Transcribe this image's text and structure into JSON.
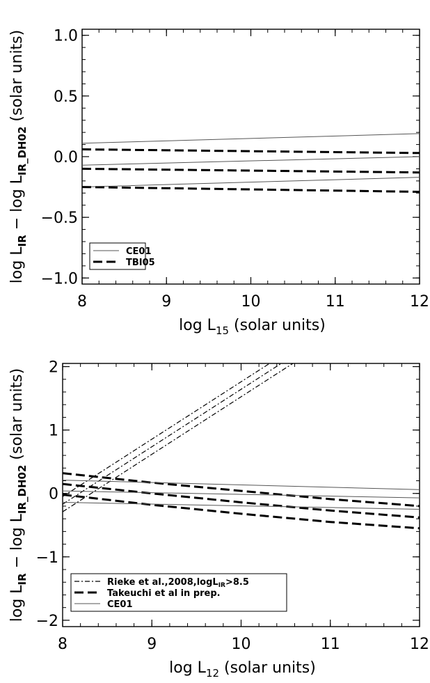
{
  "chart_data": [
    {
      "type": "line",
      "xlabel": {
        "main": "log L",
        "sub": "15",
        "tail": " (solar units)"
      },
      "ylabel": {
        "p1": "log L",
        "s1": "IR",
        "p2": " − log L",
        "s2": "IR_DH02",
        "p3": "  (solar units)"
      },
      "xlim": [
        8,
        12
      ],
      "ylim": [
        -1.05,
        1.05
      ],
      "xticks": [
        8,
        9,
        10,
        11,
        12
      ],
      "xtick_labels": [
        "8",
        "9",
        "10",
        "11",
        "12"
      ],
      "yticks": [
        -1.0,
        -0.5,
        0.0,
        0.5,
        1.0
      ],
      "ytick_labels": [
        "−1.0",
        "−0.5",
        "0.0",
        "0.5",
        "1.0"
      ],
      "legend_position": "bottom-left",
      "legend": [
        {
          "label": "CE01",
          "style": "solid-thin"
        },
        {
          "label": "TBI05",
          "style": "dashed-thick"
        }
      ],
      "series": [
        {
          "name": "CE01",
          "style": "solid-thin",
          "x": [
            8,
            12
          ],
          "y": [
            0.11,
            0.19
          ]
        },
        {
          "name": "CE01",
          "style": "solid-thin",
          "x": [
            8,
            12
          ],
          "y": [
            -0.07,
            0.0
          ]
        },
        {
          "name": "CE01",
          "style": "solid-thin",
          "x": [
            8,
            12
          ],
          "y": [
            -0.25,
            -0.17
          ]
        },
        {
          "name": "TBI05",
          "style": "dashed-thick",
          "x": [
            8,
            12
          ],
          "y": [
            0.06,
            0.03
          ]
        },
        {
          "name": "TBI05",
          "style": "dashed-thick",
          "x": [
            8,
            12
          ],
          "y": [
            -0.1,
            -0.13
          ]
        },
        {
          "name": "TBI05",
          "style": "dashed-thick",
          "x": [
            8,
            12
          ],
          "y": [
            -0.25,
            -0.29
          ]
        }
      ]
    },
    {
      "type": "line",
      "xlabel": {
        "main": "log L",
        "sub": "12",
        "tail": "  (solar units)"
      },
      "ylabel": {
        "p1": "log L",
        "s1": "IR",
        "p2": " − log L",
        "s2": "IR_DH02",
        "p3": "  (solar units)"
      },
      "xlim": [
        8,
        12
      ],
      "ylim": [
        -2.1,
        2.05
      ],
      "xticks": [
        8,
        9,
        10,
        11,
        12
      ],
      "xtick_labels": [
        "8",
        "9",
        "10",
        "11",
        "12"
      ],
      "yticks": [
        -2,
        -1,
        0,
        1,
        2
      ],
      "ytick_labels": [
        "−2",
        "−1",
        "0",
        "1",
        "2"
      ],
      "legend_position": "bottom-left",
      "legend": [
        {
          "label_parts": [
            "Rieke et al.,2008,logL",
            "IR",
            ">8.5"
          ],
          "style": "dashdot"
        },
        {
          "label_parts": [
            "Takeuchi et al in prep.",
            "",
            ""
          ],
          "style": "dashed-thick"
        },
        {
          "label_parts": [
            "CE01",
            "",
            ""
          ],
          "style": "solid-thin"
        }
      ],
      "series": [
        {
          "name": "Rieke et al.,2008,logLIR>8.5",
          "style": "dashdot",
          "x": [
            8,
            10.32
          ],
          "y": [
            -0.05,
            2.05
          ]
        },
        {
          "name": "Rieke et al.,2008,logLIR>8.5",
          "style": "dashdot",
          "x": [
            8,
            10.45
          ],
          "y": [
            -0.17,
            2.05
          ]
        },
        {
          "name": "Rieke et al.,2008,logLIR>8.5",
          "style": "dashdot",
          "x": [
            8,
            10.58
          ],
          "y": [
            -0.29,
            2.05
          ]
        },
        {
          "name": "Takeuchi et al in prep.",
          "style": "dashed-thick",
          "x": [
            8,
            9,
            10,
            11,
            12
          ],
          "y": [
            0.32,
            0.17,
            0.04,
            -0.09,
            -0.2
          ]
        },
        {
          "name": "Takeuchi et al in prep.",
          "style": "dashed-thick",
          "x": [
            8,
            9,
            10,
            11,
            12
          ],
          "y": [
            0.15,
            0.0,
            -0.14,
            -0.27,
            -0.38
          ]
        },
        {
          "name": "Takeuchi et al in prep.",
          "style": "dashed-thick",
          "x": [
            8,
            9,
            10,
            11,
            12
          ],
          "y": [
            -0.02,
            -0.18,
            -0.32,
            -0.45,
            -0.55
          ]
        },
        {
          "name": "CE01",
          "style": "solid-thin",
          "x": [
            8,
            12
          ],
          "y": [
            0.21,
            0.06
          ]
        },
        {
          "name": "CE01",
          "style": "solid-thin",
          "x": [
            8,
            12
          ],
          "y": [
            0.04,
            -0.07
          ]
        },
        {
          "name": "CE01",
          "style": "solid-thin",
          "x": [
            8,
            12
          ],
          "y": [
            -0.14,
            -0.25
          ]
        }
      ]
    }
  ]
}
